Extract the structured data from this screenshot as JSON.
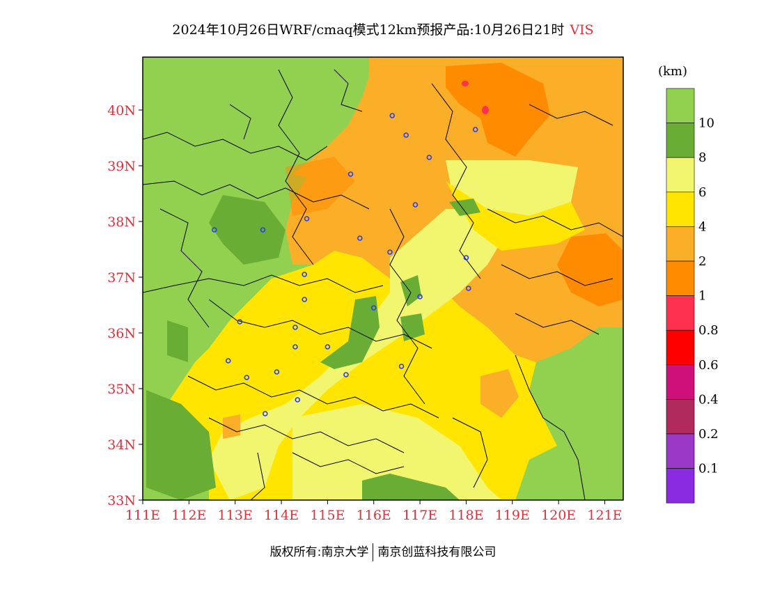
{
  "title": {
    "main": "2024年10月26日WRF/cmaq模式12km预报产品:10月26日21时",
    "variable": "VIS"
  },
  "map": {
    "lat_ticks": [
      "40N",
      "39N",
      "38N",
      "37N",
      "36N",
      "35N",
      "34N",
      "33N"
    ],
    "lon_ticks": [
      "111E",
      "112E",
      "113E",
      "114E",
      "115E",
      "116E",
      "117E",
      "118E",
      "119E",
      "120E",
      "121E"
    ],
    "stations": [
      [
        116.4,
        39.9
      ],
      [
        116.7,
        39.55
      ],
      [
        118.2,
        39.65
      ],
      [
        117.2,
        39.15
      ],
      [
        115.5,
        38.85
      ],
      [
        116.9,
        38.3
      ],
      [
        114.55,
        38.05
      ],
      [
        113.6,
        37.85
      ],
      [
        112.55,
        37.85
      ],
      [
        115.7,
        37.7
      ],
      [
        116.35,
        37.45
      ],
      [
        118.0,
        37.35
      ],
      [
        114.5,
        37.05
      ],
      [
        117.0,
        36.65
      ],
      [
        118.05,
        36.8
      ],
      [
        116.0,
        36.45
      ],
      [
        114.5,
        36.6
      ],
      [
        113.1,
        36.2
      ],
      [
        114.3,
        36.1
      ],
      [
        114.3,
        35.75
      ],
      [
        115.0,
        35.75
      ],
      [
        112.85,
        35.5
      ],
      [
        113.25,
        35.2
      ],
      [
        113.9,
        35.3
      ],
      [
        115.4,
        35.25
      ],
      [
        116.6,
        35.4
      ],
      [
        114.35,
        34.8
      ],
      [
        113.65,
        34.55
      ]
    ]
  },
  "legend": {
    "unit": "(km)",
    "bins": [
      {
        "color": "#92d050"
      },
      {
        "color": "#6aad35"
      },
      {
        "color": "#f2f56e"
      },
      {
        "color": "#ffe500"
      },
      {
        "color": "#fbae28"
      },
      {
        "color": "#ff8c00"
      },
      {
        "color": "#ff3050"
      },
      {
        "color": "#ff0000"
      },
      {
        "color": "#d0107a"
      },
      {
        "color": "#b02a5e"
      },
      {
        "color": "#9b38c8"
      },
      {
        "color": "#8a2be2"
      }
    ],
    "labels": [
      "10",
      "8",
      "6",
      "4",
      "2",
      "1",
      "0.8",
      "0.6",
      "0.4",
      "0.2",
      "0.1"
    ]
  },
  "footer": {
    "copyright": "版权所有:南京大学",
    "company": "南京创蓝科技有限公司"
  }
}
